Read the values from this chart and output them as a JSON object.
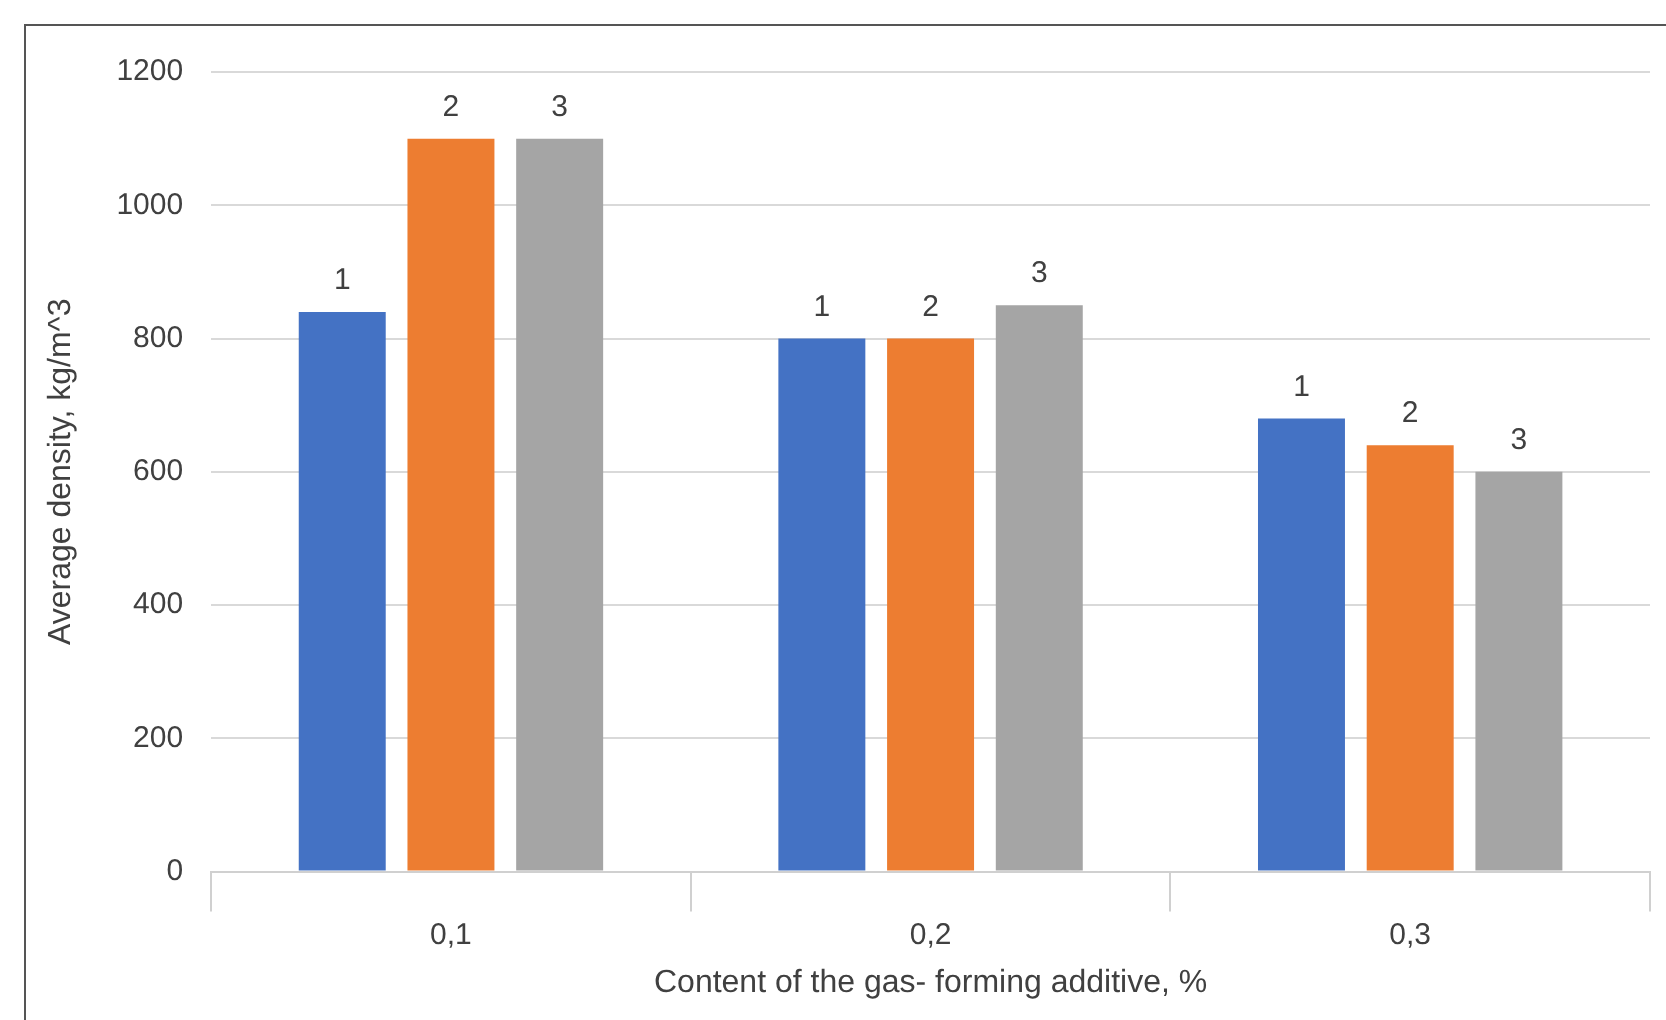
{
  "chart_data": {
    "type": "bar",
    "categories": [
      "0,1",
      "0,2",
      "0,3"
    ],
    "series": [
      {
        "name": "1",
        "color": "#4472c4",
        "values": [
          840,
          800,
          680
        ]
      },
      {
        "name": "2",
        "color": "#ed7d31",
        "values": [
          1100,
          800,
          640
        ]
      },
      {
        "name": "3",
        "color": "#a5a5a5",
        "values": [
          1100,
          850,
          600
        ]
      }
    ],
    "xlabel": "Content of the gas- forming additive, %",
    "ylabel": "Average density, kg/m^3",
    "ylim": [
      0,
      1200
    ],
    "yticks": [
      0,
      200,
      400,
      600,
      800,
      1000,
      1200
    ],
    "grid": "y",
    "legend": false
  }
}
